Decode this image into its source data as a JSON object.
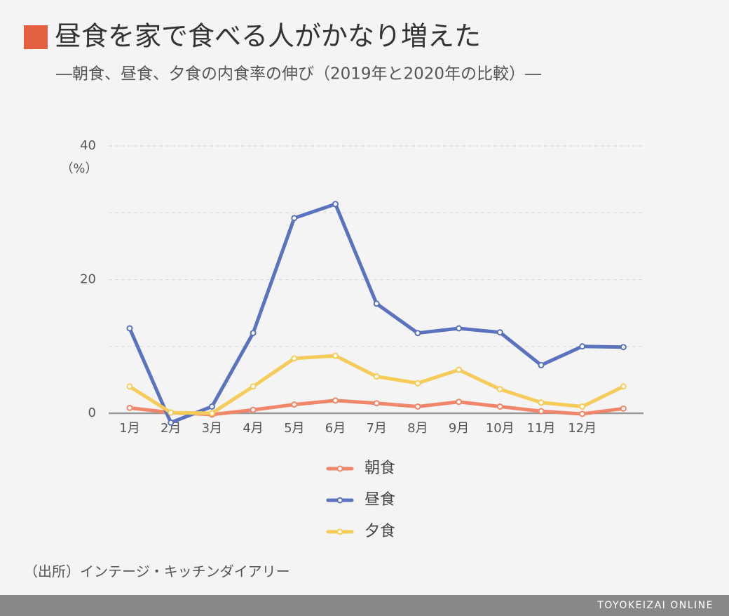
{
  "chart_data": {
    "type": "line",
    "title": "昼食を家で食べる人がかなり増えた",
    "subtitle": "―朝食、昼食、夕食の内食率の伸び（2019年と2020年の比較）―",
    "y_unit": "（%）",
    "source": "（出所）インテージ・キッチンダイアリー",
    "brand": "TOYOKEIZAI ONLINE",
    "title_marker_color": "#e0603f",
    "categories": [
      "1月",
      "2月",
      "3月",
      "4月",
      "5月",
      "6月",
      "7月",
      "8月",
      "9月",
      "10月",
      "11月",
      "12月",
      null
    ],
    "series": [
      {
        "name": "朝食",
        "color": "#f0876a",
        "values": [
          0.8,
          0.1,
          -0.2,
          0.5,
          1.3,
          1.9,
          1.5,
          1.0,
          1.7,
          1.0,
          0.3,
          -0.1,
          0.7
        ]
      },
      {
        "name": "昼食",
        "color": "#5b72be",
        "values": [
          12.7,
          -1.4,
          1.0,
          12.0,
          29.2,
          31.3,
          16.4,
          12.0,
          12.7,
          12.1,
          7.2,
          10.0,
          9.9
        ]
      },
      {
        "name": "夕食",
        "color": "#f5cc5a",
        "values": [
          4.0,
          0.1,
          0.0,
          4.0,
          8.2,
          8.6,
          5.5,
          4.5,
          6.5,
          3.6,
          1.6,
          1.0,
          4.0
        ]
      }
    ],
    "ylim": [
      0,
      40
    ],
    "yticks": [
      0,
      20,
      40
    ],
    "grid_lines": [
      10,
      20,
      30,
      40
    ],
    "grid": true,
    "legend": "bottom"
  }
}
